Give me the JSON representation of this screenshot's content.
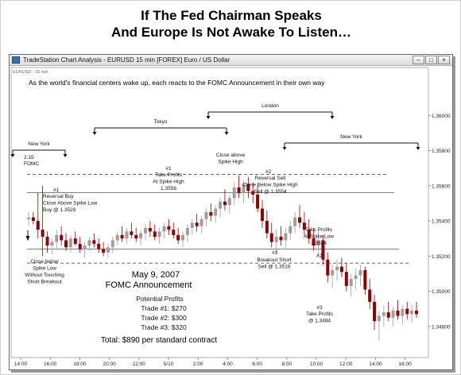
{
  "headline": {
    "line1": "If The Fed Chairman Speaks",
    "line2": "And Europe Is Not Awake To Listen…"
  },
  "window": {
    "title": "TradeStation Chart Analysis - EURUSD  15 min  [FOREX] Euro / US Dollar",
    "symbol_tag": "EURUSD - 15 min",
    "controls": {
      "minimize": "–",
      "maximize": "□",
      "close": "×"
    }
  },
  "chart_data": {
    "type": "candlestick",
    "title": "As the world's financial centers wake up, each reacts to the FOMC Announcement in their own way",
    "ylim": [
      1.347,
      1.362
    ],
    "yticks": [
      "1.36000",
      "1.35800",
      "1.35600",
      "1.35400",
      "1.35200",
      "1.35000",
      "1.34800"
    ],
    "xticks": [
      "14:00",
      "16:00",
      "18:00",
      "20:00",
      "22:00",
      "5/10",
      "2:00",
      "4:00",
      "6:00",
      "8:00",
      "10:00",
      "12:00",
      "14:00",
      "16:00"
    ],
    "levels": [
      {
        "name": "spike-high",
        "value": 1.35665,
        "style": "dashed"
      },
      {
        "name": "close-above-spike-high",
        "value": 1.3556,
        "style": "solid"
      },
      {
        "name": "spike-low",
        "value": 1.3524,
        "style": "solid"
      },
      {
        "name": "breakout-short",
        "value": 1.3516,
        "style": "dashed"
      }
    ],
    "sessions": [
      {
        "label": "New York",
        "from": "14:00",
        "to": "16:00"
      },
      {
        "label": "Tokyo",
        "from": "18:00",
        "to": "4:00"
      },
      {
        "label": "London",
        "from": "2:00",
        "to": "12:00"
      },
      {
        "label": "New York",
        "from": "8:00",
        "to": "16:00"
      }
    ],
    "annotations": {
      "fomc_time": "2:15",
      "fomc_label": "FOMC",
      "t1_id": "#1",
      "t1_lines": [
        "Reversal Buy",
        "Close Above Spike Low",
        "Buy @ 1.3529"
      ],
      "tp1_id": "#1",
      "tp1_lines": [
        "Take Profits",
        "At Spike High",
        "1.3556"
      ],
      "close_above_lines": [
        "Close above",
        "Spike High"
      ],
      "t2_id": "#2",
      "t2_lines": [
        "Reversal Sell",
        "Close Below Spike High",
        "Sell @ 1.3554"
      ],
      "tp2_id": "#2",
      "tp2_lines": [
        "Take Profits",
        "At Spike Low",
        "1.3524"
      ],
      "t3_id": "#3",
      "t3_lines": [
        "Breakout Short",
        "Sell @ 1.3516"
      ],
      "tp3_id": "#3",
      "tp3_lines": [
        "Take Profits",
        "@ 1.3484"
      ],
      "close_below_lines": [
        "Close below",
        "Spike Low",
        "Without Touching",
        "Short Breakout"
      ]
    },
    "summary": {
      "date": "May 9,  2007",
      "event": "FOMC Announcement",
      "potential": "Potential Profits",
      "trades": [
        "Trade #1:  $270",
        "Trade #2:  $300",
        "Trade #3:  $320"
      ],
      "total": "Total:  $890 per standard contract"
    },
    "candles": [
      [
        1.3541,
        1.3545,
        1.3537,
        1.3542
      ],
      [
        1.3542,
        1.3545,
        1.3538,
        1.354
      ],
      [
        1.354,
        1.3556,
        1.353,
        1.3535
      ],
      [
        1.3535,
        1.356,
        1.352,
        1.3531
      ],
      [
        1.3531,
        1.3534,
        1.3522,
        1.3526
      ],
      [
        1.3526,
        1.353,
        1.3521,
        1.3528
      ],
      [
        1.3528,
        1.3535,
        1.3524,
        1.3532
      ],
      [
        1.3532,
        1.3537,
        1.3526,
        1.3529
      ],
      [
        1.3529,
        1.3533,
        1.3523,
        1.3525
      ],
      [
        1.3525,
        1.3532,
        1.3522,
        1.353
      ],
      [
        1.353,
        1.3534,
        1.3526,
        1.3527
      ],
      [
        1.3527,
        1.3531,
        1.3522,
        1.3524
      ],
      [
        1.3524,
        1.3528,
        1.3519,
        1.3526
      ],
      [
        1.3526,
        1.3531,
        1.3523,
        1.3529
      ],
      [
        1.3529,
        1.3533,
        1.3525,
        1.3527
      ],
      [
        1.3527,
        1.353,
        1.3522,
        1.3524
      ],
      [
        1.3524,
        1.3528,
        1.352,
        1.3522
      ],
      [
        1.3522,
        1.3527,
        1.3519,
        1.3525
      ],
      [
        1.3525,
        1.3531,
        1.3522,
        1.3529
      ],
      [
        1.3529,
        1.3534,
        1.3526,
        1.3532
      ],
      [
        1.3532,
        1.3537,
        1.3528,
        1.353
      ],
      [
        1.353,
        1.3536,
        1.3527,
        1.3534
      ],
      [
        1.3534,
        1.3539,
        1.353,
        1.3532
      ],
      [
        1.3532,
        1.3536,
        1.3528,
        1.353
      ],
      [
        1.353,
        1.3535,
        1.3526,
        1.3533
      ],
      [
        1.3533,
        1.3538,
        1.3529,
        1.3536
      ],
      [
        1.3536,
        1.354,
        1.3531,
        1.3534
      ],
      [
        1.3534,
        1.3538,
        1.3529,
        1.3531
      ],
      [
        1.3531,
        1.3536,
        1.3527,
        1.3534
      ],
      [
        1.3534,
        1.3539,
        1.353,
        1.3537
      ],
      [
        1.3537,
        1.3541,
        1.3532,
        1.3535
      ],
      [
        1.3535,
        1.3539,
        1.353,
        1.3532
      ],
      [
        1.3532,
        1.3536,
        1.3527,
        1.3529
      ],
      [
        1.3529,
        1.3534,
        1.3525,
        1.3532
      ],
      [
        1.3532,
        1.3538,
        1.3528,
        1.3536
      ],
      [
        1.3536,
        1.3541,
        1.3532,
        1.3539
      ],
      [
        1.3539,
        1.3544,
        1.3534,
        1.3537
      ],
      [
        1.3537,
        1.3543,
        1.3533,
        1.3541
      ],
      [
        1.3541,
        1.3547,
        1.3537,
        1.3545
      ],
      [
        1.3545,
        1.355,
        1.354,
        1.3543
      ],
      [
        1.3543,
        1.3549,
        1.3539,
        1.3547
      ],
      [
        1.3547,
        1.3553,
        1.3542,
        1.3551
      ],
      [
        1.3551,
        1.3558,
        1.3546,
        1.3549
      ],
      [
        1.3549,
        1.3555,
        1.3544,
        1.3553
      ],
      [
        1.3553,
        1.3562,
        1.3549,
        1.3559
      ],
      [
        1.3559,
        1.3566,
        1.3553,
        1.3556
      ],
      [
        1.3556,
        1.3563,
        1.355,
        1.3561
      ],
      [
        1.3561,
        1.3565,
        1.3553,
        1.3557
      ],
      [
        1.3557,
        1.3562,
        1.355,
        1.3555
      ],
      [
        1.3555,
        1.356,
        1.3545,
        1.3547
      ],
      [
        1.3547,
        1.3552,
        1.3536,
        1.354
      ],
      [
        1.354,
        1.3546,
        1.353,
        1.3533
      ],
      [
        1.3533,
        1.3539,
        1.3525,
        1.3528
      ],
      [
        1.3528,
        1.3535,
        1.3522,
        1.3531
      ],
      [
        1.3531,
        1.3537,
        1.3526,
        1.3529
      ],
      [
        1.3529,
        1.3536,
        1.3524,
        1.3533
      ],
      [
        1.3533,
        1.354,
        1.3529,
        1.3537
      ],
      [
        1.3537,
        1.3545,
        1.3533,
        1.3542
      ],
      [
        1.3542,
        1.3549,
        1.3536,
        1.3539
      ],
      [
        1.3539,
        1.3545,
        1.3532,
        1.3535
      ],
      [
        1.3535,
        1.3541,
        1.3527,
        1.353
      ],
      [
        1.353,
        1.3536,
        1.3523,
        1.3526
      ],
      [
        1.3526,
        1.3534,
        1.352,
        1.3529
      ],
      [
        1.3529,
        1.3532,
        1.3515,
        1.3518
      ],
      [
        1.3518,
        1.3522,
        1.3505,
        1.3509
      ],
      [
        1.3509,
        1.3515,
        1.3502,
        1.3512
      ],
      [
        1.3512,
        1.3518,
        1.3506,
        1.3514
      ],
      [
        1.3514,
        1.3519,
        1.3508,
        1.3511
      ],
      [
        1.3511,
        1.3516,
        1.35,
        1.3503
      ],
      [
        1.3503,
        1.351,
        1.3497,
        1.3507
      ],
      [
        1.3507,
        1.3513,
        1.3501,
        1.3509
      ],
      [
        1.3509,
        1.3515,
        1.3503,
        1.3512
      ],
      [
        1.3512,
        1.3514,
        1.3498,
        1.3501
      ],
      [
        1.3501,
        1.3507,
        1.349,
        1.3494
      ],
      [
        1.3494,
        1.3498,
        1.3478,
        1.3483
      ],
      [
        1.3483,
        1.3489,
        1.3472,
        1.3486
      ],
      [
        1.3486,
        1.3492,
        1.348,
        1.3488
      ],
      [
        1.3488,
        1.3494,
        1.3483,
        1.3485
      ],
      [
        1.3485,
        1.3491,
        1.348,
        1.3489
      ],
      [
        1.3489,
        1.3495,
        1.3484,
        1.3486
      ],
      [
        1.3486,
        1.3492,
        1.3481,
        1.349
      ],
      [
        1.349,
        1.3494,
        1.3484,
        1.3487
      ],
      [
        1.3487,
        1.3492,
        1.3482,
        1.3489
      ],
      [
        1.3489,
        1.3494,
        1.3485,
        1.3487
      ]
    ]
  }
}
